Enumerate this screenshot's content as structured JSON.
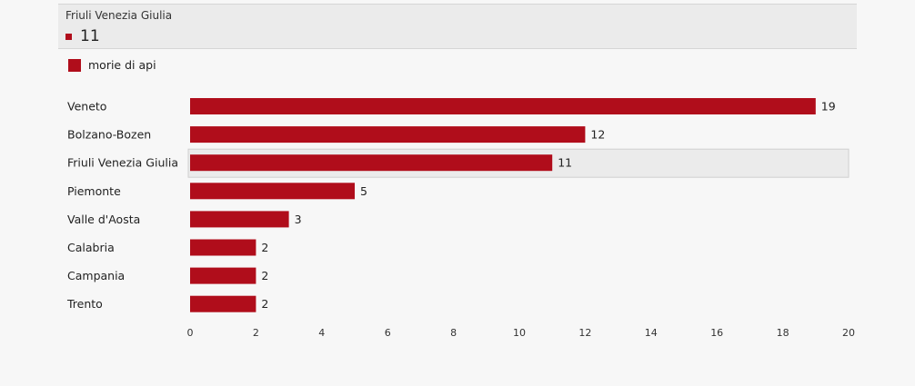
{
  "tooltip": {
    "title": "Friuli Venezia Giulia",
    "value": "11"
  },
  "legend": {
    "label": "morie di api"
  },
  "colors": {
    "bar": "#b00d1b",
    "highlight_bg": "#ebebeb",
    "highlight_border": "#cfcfcf"
  },
  "chart_data": {
    "type": "bar",
    "orientation": "horizontal",
    "categories": [
      "Veneto",
      "Bolzano-Bozen",
      "Friuli Venezia Giulia",
      "Piemonte",
      "Valle d'Aosta",
      "Calabria",
      "Campania",
      "Trento"
    ],
    "series": [
      {
        "name": "morie di api",
        "values": [
          19,
          12,
          11,
          5,
          3,
          2,
          2,
          2
        ]
      }
    ],
    "xlim": [
      0,
      20
    ],
    "xticks": [
      0,
      2,
      4,
      6,
      8,
      10,
      12,
      14,
      16,
      18,
      20
    ],
    "highlighted_category": "Friuli Venezia Giulia",
    "legend_position": "top-left",
    "grid": false
  }
}
